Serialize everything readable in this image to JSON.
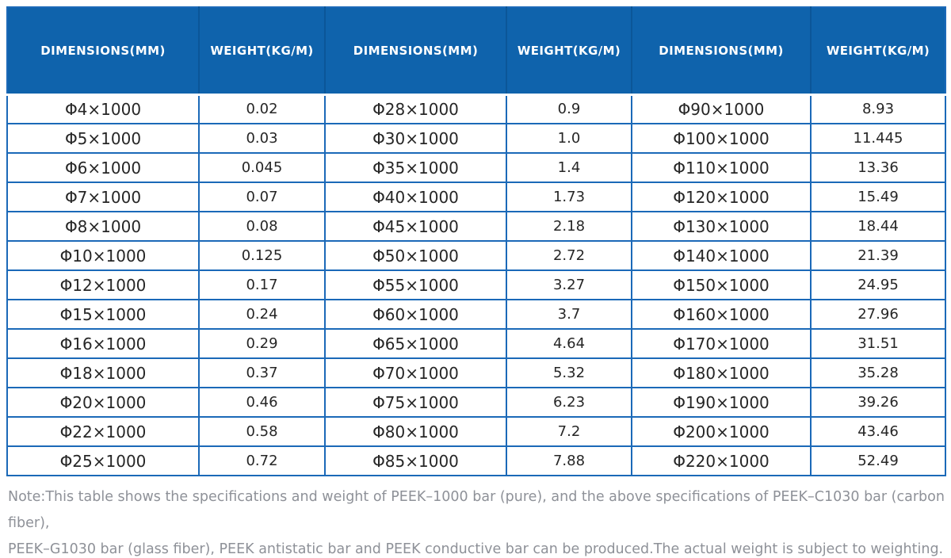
{
  "theme": {
    "header_bg": "#0f63ac",
    "header_text": "#ffffff",
    "grid_border": "#1b69b8",
    "cell_text": "#262626",
    "note_text": "#8e9198"
  },
  "table": {
    "headers": [
      {
        "label": "DIMENSIONS(MM)"
      },
      {
        "label": "WEIGHT(KG/M)"
      },
      {
        "label": "DIMENSIONS(MM)"
      },
      {
        "label": "WEIGHT(KG/M)"
      },
      {
        "label": "DIMENSIONS(MM)"
      },
      {
        "label": "WEIGHT(KG/M)"
      }
    ],
    "rows": [
      [
        "Φ4×1000",
        "0.02",
        "Φ28×1000",
        "0.9",
        "Φ90×1000",
        "8.93"
      ],
      [
        "Φ5×1000",
        "0.03",
        "Φ30×1000",
        "1.0",
        "Φ100×1000",
        "11.445"
      ],
      [
        "Φ6×1000",
        "0.045",
        "Φ35×1000",
        "1.4",
        "Φ110×1000",
        "13.36"
      ],
      [
        "Φ7×1000",
        "0.07",
        "Φ40×1000",
        "1.73",
        "Φ120×1000",
        "15.49"
      ],
      [
        "Φ8×1000",
        "0.08",
        "Φ45×1000",
        "2.18",
        "Φ130×1000",
        "18.44"
      ],
      [
        "Φ10×1000",
        "0.125",
        "Φ50×1000",
        "2.72",
        "Φ140×1000",
        "21.39"
      ],
      [
        "Φ12×1000",
        "0.17",
        "Φ55×1000",
        "3.27",
        "Φ150×1000",
        "24.95"
      ],
      [
        "Φ15×1000",
        "0.24",
        "Φ60×1000",
        "3.7",
        "Φ160×1000",
        "27.96"
      ],
      [
        "Φ16×1000",
        "0.29",
        "Φ65×1000",
        "4.64",
        "Φ170×1000",
        "31.51"
      ],
      [
        "Φ18×1000",
        "0.37",
        "Φ70×1000",
        "5.32",
        "Φ180×1000",
        "35.28"
      ],
      [
        "Φ20×1000",
        "0.46",
        "Φ75×1000",
        "6.23",
        "Φ190×1000",
        "39.26"
      ],
      [
        "Φ22×1000",
        "0.58",
        "Φ80×1000",
        "7.2",
        "Φ200×1000",
        "43.46"
      ],
      [
        "Φ25×1000",
        "0.72",
        "Φ85×1000",
        "7.88",
        "Φ220×1000",
        "52.49"
      ]
    ]
  },
  "note": {
    "lines": [
      "Note:This table shows the specifications and weight of PEEK–1000 bar (pure), and the above specifications of PEEK–C1030 bar (carbon fiber),",
      "PEEK–G1030 bar (glass fiber), PEEK antistatic bar and PEEK conductive bar can be produced.The actual weight is subject to weighting."
    ]
  },
  "chart_data": {
    "type": "table",
    "title": "PEEK-1000 bar specifications and weight",
    "columns": [
      "DIMENSIONS(MM)",
      "WEIGHT(KG/M)",
      "DIMENSIONS(MM)",
      "WEIGHT(KG/M)",
      "DIMENSIONS(MM)",
      "WEIGHT(KG/M)"
    ],
    "rows": [
      [
        "Φ4×1000",
        "0.02",
        "Φ28×1000",
        "0.9",
        "Φ90×1000",
        "8.93"
      ],
      [
        "Φ5×1000",
        "0.03",
        "Φ30×1000",
        "1.0",
        "Φ100×1000",
        "11.445"
      ],
      [
        "Φ6×1000",
        "0.045",
        "Φ35×1000",
        "1.4",
        "Φ110×1000",
        "13.36"
      ],
      [
        "Φ7×1000",
        "0.07",
        "Φ40×1000",
        "1.73",
        "Φ120×1000",
        "15.49"
      ],
      [
        "Φ8×1000",
        "0.08",
        "Φ45×1000",
        "2.18",
        "Φ130×1000",
        "18.44"
      ],
      [
        "Φ10×1000",
        "0.125",
        "Φ50×1000",
        "2.72",
        "Φ140×1000",
        "21.39"
      ],
      [
        "Φ12×1000",
        "0.17",
        "Φ55×1000",
        "3.27",
        "Φ150×1000",
        "24.95"
      ],
      [
        "Φ15×1000",
        "0.24",
        "Φ60×1000",
        "3.7",
        "Φ160×1000",
        "27.96"
      ],
      [
        "Φ16×1000",
        "0.29",
        "Φ65×1000",
        "4.64",
        "Φ170×1000",
        "31.51"
      ],
      [
        "Φ18×1000",
        "0.37",
        "Φ70×1000",
        "5.32",
        "Φ180×1000",
        "35.28"
      ],
      [
        "Φ20×1000",
        "0.46",
        "Φ75×1000",
        "6.23",
        "Φ190×1000",
        "39.26"
      ],
      [
        "Φ22×1000",
        "0.58",
        "Φ80×1000",
        "7.2",
        "Φ200×1000",
        "43.46"
      ],
      [
        "Φ25×1000",
        "0.72",
        "Φ85×1000",
        "7.88",
        "Φ220×1000",
        "52.49"
      ]
    ],
    "weights_kg_per_m_by_diameter_mm": {
      "4": 0.02,
      "5": 0.03,
      "6": 0.045,
      "7": 0.07,
      "8": 0.08,
      "10": 0.125,
      "12": 0.17,
      "15": 0.24,
      "16": 0.29,
      "18": 0.37,
      "20": 0.46,
      "22": 0.58,
      "25": 0.72,
      "28": 0.9,
      "30": 1.0,
      "35": 1.4,
      "40": 1.73,
      "45": 2.18,
      "50": 2.72,
      "55": 3.27,
      "60": 3.7,
      "65": 4.64,
      "70": 5.32,
      "75": 6.23,
      "80": 7.2,
      "85": 7.88,
      "90": 8.93,
      "100": 11.445,
      "110": 13.36,
      "120": 15.49,
      "130": 18.44,
      "140": 21.39,
      "150": 24.95,
      "160": 27.96,
      "170": 31.51,
      "180": 35.28,
      "190": 39.26,
      "200": 43.46,
      "220": 52.49
    }
  }
}
